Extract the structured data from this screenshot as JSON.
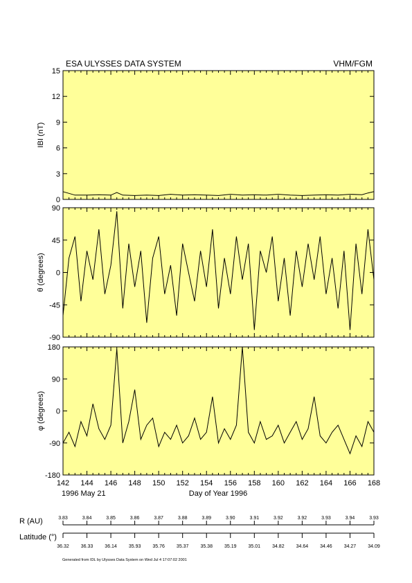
{
  "header": {
    "title": "ESA ULYSSES DATA SYSTEM",
    "instrument": "VHM/FGM"
  },
  "chart_data": [
    {
      "type": "line",
      "ylabel": "IBI (nT)",
      "ylim": [
        0,
        15
      ],
      "yticks": [
        "0",
        "3",
        "6",
        "9",
        "12",
        "15"
      ],
      "x": [
        142,
        143,
        144,
        145,
        146,
        146.5,
        147,
        148,
        149,
        150,
        151,
        152,
        153,
        154,
        155,
        156,
        157,
        158,
        159,
        160,
        161,
        162,
        163,
        164,
        165,
        166,
        167,
        167.5,
        168
      ],
      "values": [
        0.9,
        0.5,
        0.5,
        0.55,
        0.5,
        0.8,
        0.5,
        0.45,
        0.5,
        0.45,
        0.6,
        0.5,
        0.55,
        0.5,
        0.45,
        0.6,
        0.5,
        0.55,
        0.5,
        0.6,
        0.5,
        0.45,
        0.5,
        0.55,
        0.5,
        0.6,
        0.55,
        0.75,
        0.9
      ]
    },
    {
      "type": "line",
      "ylabel": "θ (degrees)",
      "ylim": [
        -90,
        90
      ],
      "yticks": [
        "-90",
        "-45",
        "0",
        "45",
        "90"
      ],
      "x": [
        142,
        142.5,
        143,
        143.5,
        144,
        144.5,
        145,
        145.5,
        146,
        146.5,
        147,
        147.5,
        148,
        148.5,
        149,
        149.5,
        150,
        150.5,
        151,
        151.5,
        152,
        152.5,
        153,
        153.5,
        154,
        154.5,
        155,
        155.5,
        156,
        156.5,
        157,
        157.5,
        158,
        158.5,
        159,
        159.5,
        160,
        160.5,
        161,
        161.5,
        162,
        162.5,
        163,
        163.5,
        164,
        164.5,
        165,
        165.5,
        166,
        166.5,
        167,
        167.5,
        168
      ],
      "values": [
        -60,
        20,
        50,
        -40,
        30,
        -10,
        60,
        -30,
        10,
        85,
        -50,
        40,
        -20,
        30,
        -70,
        20,
        50,
        -30,
        10,
        -60,
        40,
        0,
        -40,
        30,
        -20,
        60,
        -50,
        20,
        -30,
        50,
        -10,
        40,
        -80,
        30,
        0,
        50,
        -40,
        20,
        -60,
        30,
        -20,
        40,
        -10,
        50,
        -30,
        20,
        -50,
        30,
        -80,
        40,
        -30,
        60,
        -10
      ]
    },
    {
      "type": "line",
      "ylabel": "φ (degrees)",
      "ylim": [
        -180,
        180
      ],
      "yticks": [
        "-180",
        "-90",
        "0",
        "90",
        "180"
      ],
      "x": [
        142,
        142.5,
        143,
        143.5,
        144,
        144.5,
        145,
        145.5,
        146,
        146.5,
        147,
        147.5,
        148,
        148.5,
        149,
        149.5,
        150,
        150.5,
        151,
        151.5,
        152,
        152.5,
        153,
        153.5,
        154,
        154.5,
        155,
        155.5,
        156,
        156.5,
        157,
        157.5,
        158,
        158.5,
        159,
        159.5,
        160,
        160.5,
        161,
        161.5,
        162,
        162.5,
        163,
        163.5,
        164,
        164.5,
        165,
        165.5,
        166,
        166.5,
        167,
        167.5,
        168
      ],
      "values": [
        -90,
        -60,
        -100,
        -30,
        -70,
        20,
        -50,
        -80,
        -40,
        175,
        -90,
        -30,
        60,
        -80,
        -40,
        -20,
        -100,
        -60,
        -80,
        -40,
        -90,
        -70,
        -20,
        -80,
        -60,
        40,
        -90,
        -50,
        -80,
        -40,
        180,
        -60,
        -90,
        -30,
        -80,
        -70,
        -40,
        -90,
        -60,
        -30,
        -80,
        -50,
        40,
        -70,
        -90,
        -60,
        -40,
        -80,
        -120,
        -70,
        -100,
        -30,
        -60
      ]
    }
  ],
  "x_axis": {
    "ticks": [
      "142",
      "144",
      "146",
      "148",
      "150",
      "152",
      "154",
      "156",
      "158",
      "160",
      "162",
      "164",
      "166",
      "168"
    ],
    "xlim": [
      142,
      168
    ],
    "start_label": "1996 May 21",
    "xlabel": "Day of Year 1996"
  },
  "ephemeris": {
    "r_label": "R (AU)",
    "r_values": [
      "3.83",
      "3.84",
      "3.85",
      "3.86",
      "3.87",
      "3.88",
      "3.89",
      "3.90",
      "3.91",
      "3.92",
      "3.92",
      "3.93",
      "3.94",
      "3.93"
    ],
    "lat_label": "Latitude (°)",
    "lat_values": [
      "36.32",
      "36.33",
      "36.14",
      "35.93",
      "35.76",
      "35.37",
      "35.38",
      "35.19",
      "35.01",
      "34.82",
      "34.64",
      "34.46",
      "34.27",
      "34.09"
    ]
  },
  "footer": "Generated from IDL by Ulysses Data System on Wed Jul  4 17:07:02 2001",
  "colors": {
    "panel_bg": "#ffff99",
    "line": "#000000"
  }
}
